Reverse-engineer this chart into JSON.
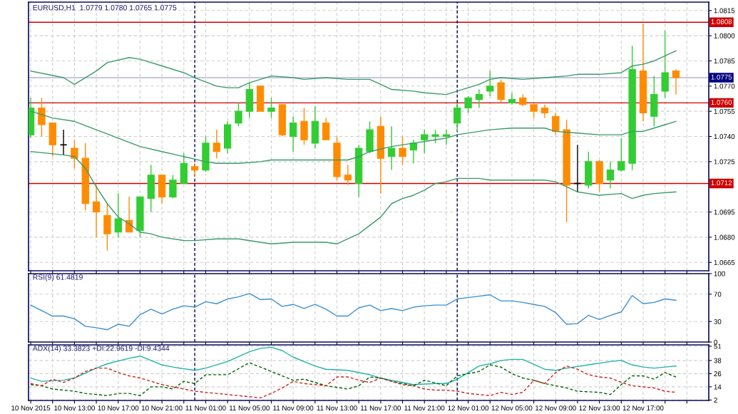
{
  "chart_data": [
    {
      "type": "candlestick",
      "title": "EURUSD,H1  1.0779 1.0780 1.0765 1.0775",
      "x": [
        "2015-11-10T09:00",
        "2015-11-10T10:00",
        "2015-11-10T11:00",
        "2015-11-10T12:00",
        "2015-11-10T13:00",
        "2015-11-10T14:00",
        "2015-11-10T15:00",
        "2015-11-10T16:00",
        "2015-11-10T17:00",
        "2015-11-10T18:00",
        "2015-11-10T19:00",
        "2015-11-10T20:00",
        "2015-11-10T21:00",
        "2015-11-10T22:00",
        "2015-11-10T23:00",
        "2015-11-11T00:00",
        "2015-11-11T01:00",
        "2015-11-11T02:00",
        "2015-11-11T03:00",
        "2015-11-11T04:00",
        "2015-11-11T05:00",
        "2015-11-11T06:00",
        "2015-11-11T07:00",
        "2015-11-11T08:00",
        "2015-11-11T09:00",
        "2015-11-11T10:00",
        "2015-11-11T11:00",
        "2015-11-11T12:00",
        "2015-11-11T13:00",
        "2015-11-11T14:00",
        "2015-11-11T15:00",
        "2015-11-11T16:00",
        "2015-11-11T17:00",
        "2015-11-11T18:00",
        "2015-11-11T19:00",
        "2015-11-11T20:00",
        "2015-11-11T21:00",
        "2015-11-11T22:00",
        "2015-11-11T23:00",
        "2015-11-12T00:00",
        "2015-11-12T01:00",
        "2015-11-12T02:00",
        "2015-11-12T03:00",
        "2015-11-12T04:00",
        "2015-11-12T05:00",
        "2015-11-12T06:00",
        "2015-11-12T07:00",
        "2015-11-12T08:00",
        "2015-11-12T09:00",
        "2015-11-12T10:00",
        "2015-11-12T11:00",
        "2015-11-12T12:00",
        "2015-11-12T13:00",
        "2015-11-12T14:00",
        "2015-11-12T15:00",
        "2015-11-12T16:00",
        "2015-11-12T17:00",
        "2015-11-12T18:00",
        "2015-11-12T19:00",
        "2015-11-12T20:00"
      ],
      "ohlc": [
        [
          1.0741,
          1.0763,
          1.0739,
          1.0757
        ],
        [
          1.0757,
          1.0763,
          1.074,
          1.0747
        ],
        [
          1.0748,
          1.0748,
          1.0728,
          1.0735
        ],
        [
          1.0735,
          1.0744,
          1.0729,
          1.0735
        ],
        [
          1.0733,
          1.0738,
          1.0721,
          1.0727
        ],
        [
          1.0727,
          1.0736,
          1.0696,
          1.07
        ],
        [
          1.0701,
          1.0711,
          1.068,
          1.0695
        ],
        [
          1.0693,
          1.07,
          1.0672,
          1.0682
        ],
        [
          1.0683,
          1.0706,
          1.068,
          1.0691
        ],
        [
          1.069,
          1.0704,
          1.0683,
          1.0683
        ],
        [
          1.0684,
          1.0704,
          1.068,
          1.0704
        ],
        [
          1.0703,
          1.0723,
          1.0695,
          1.0717
        ],
        [
          1.0717,
          1.0717,
          1.07,
          1.0704
        ],
        [
          1.0704,
          1.0717,
          1.0703,
          1.0714
        ],
        [
          1.0712,
          1.073,
          1.0712,
          1.0724
        ],
        [
          1.0722,
          1.0724,
          1.0716,
          1.072
        ],
        [
          1.072,
          1.074,
          1.0719,
          1.0736
        ],
        [
          1.0736,
          1.0744,
          1.0727,
          1.0731
        ],
        [
          1.0733,
          1.0749,
          1.073,
          1.0747
        ],
        [
          1.0748,
          1.076,
          1.0746,
          1.0755
        ],
        [
          1.0755,
          1.0772,
          1.0751,
          1.0768
        ],
        [
          1.077,
          1.077,
          1.0755,
          1.0755
        ],
        [
          1.0755,
          1.0763,
          1.0751,
          1.0757
        ],
        [
          1.0759,
          1.0759,
          1.074,
          1.0741
        ],
        [
          1.074,
          1.0752,
          1.0731,
          1.0748
        ],
        [
          1.0749,
          1.0757,
          1.0735,
          1.0738
        ],
        [
          1.0736,
          1.0758,
          1.0733,
          1.0749
        ],
        [
          1.0748,
          1.0751,
          1.0738,
          1.0738
        ],
        [
          1.0736,
          1.074,
          1.0714,
          1.0716
        ],
        [
          1.0717,
          1.0723,
          1.0711,
          1.0714
        ],
        [
          1.0712,
          1.0735,
          1.0704,
          1.0733
        ],
        [
          1.0731,
          1.0749,
          1.073,
          1.0744
        ],
        [
          1.0746,
          1.0752,
          1.0706,
          1.0727
        ],
        [
          1.0728,
          1.0746,
          1.072,
          1.0733
        ],
        [
          1.0733,
          1.074,
          1.0723,
          1.0728
        ],
        [
          1.0732,
          1.0738,
          1.0724,
          1.0736
        ],
        [
          1.0738,
          1.0744,
          1.073,
          1.0741
        ],
        [
          1.074,
          1.0744,
          1.0736,
          1.0741
        ],
        [
          1.074,
          1.0744,
          1.0735,
          1.0741
        ],
        [
          1.0748,
          1.076,
          1.0743,
          1.0757
        ],
        [
          1.0757,
          1.0764,
          1.0754,
          1.0763
        ],
        [
          1.0762,
          1.0768,
          1.0757,
          1.0765
        ],
        [
          1.0767,
          1.0779,
          1.0764,
          1.077
        ],
        [
          1.0772,
          1.0774,
          1.076,
          1.0762
        ],
        [
          1.076,
          1.0766,
          1.0759,
          1.0762
        ],
        [
          1.0763,
          1.0765,
          1.0758,
          1.0759
        ],
        [
          1.0759,
          1.0759,
          1.0751,
          1.0755
        ],
        [
          1.0757,
          1.0759,
          1.0751,
          1.0754
        ],
        [
          1.0752,
          1.0754,
          1.0741,
          1.0743
        ],
        [
          1.0744,
          1.075,
          1.0689,
          1.0711
        ],
        [
          1.0712,
          1.0735,
          1.0707,
          1.0712
        ],
        [
          1.0711,
          1.0731,
          1.0709,
          1.0725
        ],
        [
          1.0725,
          1.0726,
          1.0707,
          1.0712
        ],
        [
          1.0714,
          1.0725,
          1.0709,
          1.072
        ],
        [
          1.072,
          1.0739,
          1.0719,
          1.0725
        ],
        [
          1.0724,
          1.0794,
          1.072,
          1.078
        ],
        [
          1.0779,
          1.0807,
          1.0749,
          1.0754
        ],
        [
          1.0752,
          1.0776,
          1.0746,
          1.0765
        ],
        [
          1.0767,
          1.0803,
          1.0763,
          1.0778
        ],
        [
          1.0779,
          1.078,
          1.0765,
          1.0775
        ]
      ],
      "colors": [
        "#32cd32",
        "#ff8c00",
        "#ff8c00",
        "#000000",
        "#ff8c00",
        "#ff8c00",
        "#ff8c00",
        "#ff8c00",
        "#32cd32",
        "#ff8c00",
        "#32cd32",
        "#32cd32",
        "#ff8c00",
        "#32cd32",
        "#32cd32",
        "#ff8c00",
        "#32cd32",
        "#ff8c00",
        "#32cd32",
        "#32cd32",
        "#32cd32",
        "#ff8c00",
        "#32cd32",
        "#ff8c00",
        "#32cd32",
        "#ff8c00",
        "#32cd32",
        "#ff8c00",
        "#ff8c00",
        "#ff8c00",
        "#32cd32",
        "#32cd32",
        "#ff8c00",
        "#32cd32",
        "#ff8c00",
        "#32cd32",
        "#32cd32",
        "#32cd32",
        "#32cd32",
        "#32cd32",
        "#32cd32",
        "#32cd32",
        "#32cd32",
        "#ff8c00",
        "#32cd32",
        "#ff8c00",
        "#ff8c00",
        "#ff8c00",
        "#ff8c00",
        "#ff8c00",
        "#000000",
        "#32cd32",
        "#ff8c00",
        "#32cd32",
        "#32cd32",
        "#32cd32",
        "#ff8c00",
        "#32cd32",
        "#32cd32",
        "#ff8c00"
      ],
      "series": [
        {
          "type": "line",
          "color": "#3a9a6a",
          "x": [
            "2015-11-10T09:00",
            "2015-11-10T12:00",
            "2015-11-10T13:00",
            "2015-11-10T15:00",
            "2015-11-10T16:00",
            "2015-11-10T18:00",
            "2015-11-10T19:00",
            "2015-11-10T21:00",
            "2015-11-10T23:00",
            "2015-11-11T00:00",
            "2015-11-11T02:00",
            "2015-11-11T03:00",
            "2015-11-11T04:00",
            "2015-11-11T05:00",
            "2015-11-11T06:00",
            "2015-11-11T07:00",
            "2015-11-11T09:00",
            "2015-11-11T10:00",
            "2015-11-11T12:00",
            "2015-11-11T14:00",
            "2015-11-11T16:00",
            "2015-11-11T17:00",
            "2015-11-11T18:00",
            "2015-11-11T20:00",
            "2015-11-11T21:00",
            "2015-11-11T23:00",
            "2015-11-12T00:00",
            "2015-11-12T01:00",
            "2015-11-12T02:00",
            "2015-11-12T03:00",
            "2015-11-12T04:00",
            "2015-11-12T06:00",
            "2015-11-12T08:00",
            "2015-11-12T10:00",
            "2015-11-12T11:00",
            "2015-11-12T13:00",
            "2015-11-12T15:00",
            "2015-11-12T16:00",
            "2015-11-12T17:00",
            "2015-11-12T18:00",
            "2015-11-12T19:00",
            "2015-11-12T20:00"
          ],
          "values": [
            1.0779,
            1.0775,
            1.0771,
            1.0779,
            1.0784,
            1.0787,
            1.0786,
            1.0782,
            1.0778,
            1.0775,
            1.077,
            1.0769,
            1.0769,
            1.0772,
            1.0774,
            1.0776,
            1.0775,
            1.0774,
            1.0775,
            1.0774,
            1.0774,
            1.0771,
            1.0768,
            1.0767,
            1.0766,
            1.0765,
            1.0767,
            1.0769,
            1.0771,
            1.0774,
            1.0775,
            1.0774,
            1.0775,
            1.0776,
            1.0777,
            1.0777,
            1.0778,
            1.0782,
            1.0783,
            1.0785,
            1.0788,
            1.0791
          ]
        },
        {
          "type": "line",
          "color": "#3a9a6a",
          "x": [
            "2015-11-10T09:00",
            "2015-11-10T11:00",
            "2015-11-10T13:00",
            "2015-11-10T15:00",
            "2015-11-10T17:00",
            "2015-11-10T19:00",
            "2015-11-10T21:00",
            "2015-11-10T23:00",
            "2015-11-11T01:00",
            "2015-11-11T02:00",
            "2015-11-11T04:00",
            "2015-11-11T06:00",
            "2015-11-11T07:00",
            "2015-11-11T09:00",
            "2015-11-11T12:00",
            "2015-11-11T13:00",
            "2015-11-11T14:00",
            "2015-11-11T15:00",
            "2015-11-11T16:00",
            "2015-11-11T18:00",
            "2015-11-11T20:00",
            "2015-11-11T22:00",
            "2015-11-11T23:00",
            "2015-11-12T00:00",
            "2015-11-12T02:00",
            "2015-11-12T03:00",
            "2015-11-12T05:00",
            "2015-11-12T08:00",
            "2015-11-12T09:00",
            "2015-11-12T11:00",
            "2015-11-12T13:00",
            "2015-11-12T15:00",
            "2015-11-12T16:00",
            "2015-11-12T17:00",
            "2015-11-12T18:00",
            "2015-11-12T19:00",
            "2015-11-12T20:00"
          ],
          "values": [
            1.0755,
            1.0751,
            1.0749,
            1.0744,
            1.0739,
            1.0734,
            1.0731,
            1.0728,
            1.0725,
            1.0724,
            1.0724,
            1.0725,
            1.0726,
            1.0726,
            1.0726,
            1.0726,
            1.0726,
            1.0728,
            1.0731,
            1.0734,
            1.0736,
            1.0738,
            1.0739,
            1.0741,
            1.0743,
            1.0744,
            1.0745,
            1.0745,
            1.0743,
            1.0742,
            1.0741,
            1.0741,
            1.0743,
            1.0743,
            1.0745,
            1.0747,
            1.0749
          ]
        },
        {
          "type": "line",
          "color": "#3a9a6a",
          "x": [
            "2015-11-10T09:00",
            "2015-11-10T12:00",
            "2015-11-10T13:00",
            "2015-11-10T14:00",
            "2015-11-10T15:00",
            "2015-11-10T16:00",
            "2015-11-10T17:00",
            "2015-11-10T18:00",
            "2015-11-10T19:00",
            "2015-11-10T20:00",
            "2015-11-10T21:00",
            "2015-11-10T23:00",
            "2015-11-11T00:00",
            "2015-11-11T02:00",
            "2015-11-11T04:00",
            "2015-11-11T06:00",
            "2015-11-11T07:00",
            "2015-11-11T09:00",
            "2015-11-11T11:00",
            "2015-11-11T12:00",
            "2015-11-11T13:00",
            "2015-11-11T14:00",
            "2015-11-11T15:00",
            "2015-11-11T16:00",
            "2015-11-11T17:00",
            "2015-11-11T18:00",
            "2015-11-11T19:00",
            "2015-11-11T20:00",
            "2015-11-11T21:00",
            "2015-11-11T22:00",
            "2015-11-11T23:00",
            "2015-11-12T00:00",
            "2015-11-12T02:00",
            "2015-11-12T03:00",
            "2015-11-12T04:00",
            "2015-11-12T06:00",
            "2015-11-12T08:00",
            "2015-11-12T09:00",
            "2015-11-12T10:00",
            "2015-11-12T11:00",
            "2015-11-12T12:00",
            "2015-11-12T13:00",
            "2015-11-12T15:00",
            "2015-11-12T16:00",
            "2015-11-12T17:00",
            "2015-11-12T18:00",
            "2015-11-12T20:00"
          ],
          "values": [
            1.0731,
            1.0729,
            1.0728,
            1.0721,
            1.071,
            1.07,
            1.0692,
            1.0688,
            1.0683,
            1.0682,
            1.068,
            1.0678,
            1.0678,
            1.0679,
            1.0679,
            1.0677,
            1.0676,
            1.0677,
            1.0677,
            1.0677,
            1.0676,
            1.0679,
            1.0682,
            1.0687,
            1.0692,
            1.07,
            1.0703,
            1.0705,
            1.0708,
            1.0712,
            1.0713,
            1.0715,
            1.0715,
            1.0714,
            1.0714,
            1.0714,
            1.0714,
            1.0713,
            1.071,
            1.0707,
            1.0706,
            1.0705,
            1.0706,
            1.0703,
            1.0705,
            1.0706,
            1.0707
          ]
        }
      ],
      "xlim": [
        "2015-11-10T08:48",
        "2015-11-12T23:00"
      ],
      "xticks": [
        {
          "value": "2015-11-10T09:00",
          "label": null
        },
        {
          "value": "2015-11-10T11:00",
          "label": null
        },
        {
          "value": "2015-11-10T13:00",
          "label": null
        },
        {
          "value": "2015-11-10T15:00",
          "label": null
        },
        {
          "value": "2015-11-10T17:00",
          "label": null
        },
        {
          "value": "2015-11-10T19:00",
          "label": null
        },
        {
          "value": "2015-11-10T21:00",
          "label": null
        },
        {
          "value": "2015-11-10T23:00",
          "label": null
        },
        {
          "value": "2015-11-11T01:00",
          "label": null
        },
        {
          "value": "2015-11-11T03:00",
          "label": null
        },
        {
          "value": "2015-11-11T05:00",
          "label": null
        },
        {
          "value": "2015-11-11T07:00",
          "label": null
        },
        {
          "value": "2015-11-11T09:00",
          "label": null
        },
        {
          "value": "2015-11-11T11:00",
          "label": null
        },
        {
          "value": "2015-11-11T13:00",
          "label": null
        },
        {
          "value": "2015-11-11T15:00",
          "label": null
        },
        {
          "value": "2015-11-11T17:00",
          "label": null
        },
        {
          "value": "2015-11-11T19:00",
          "label": null
        },
        {
          "value": "2015-11-11T21:00",
          "label": null
        },
        {
          "value": "2015-11-11T23:00",
          "label": null
        },
        {
          "value": "2015-11-12T01:00",
          "label": null
        },
        {
          "value": "2015-11-12T03:00",
          "label": null
        },
        {
          "value": "2015-11-12T05:00",
          "label": null
        },
        {
          "value": "2015-11-12T07:00",
          "label": null
        },
        {
          "value": "2015-11-12T09:00",
          "label": null
        },
        {
          "value": "2015-11-12T11:00",
          "label": null
        },
        {
          "value": "2015-11-12T13:00",
          "label": null
        },
        {
          "value": "2015-11-12T15:00",
          "label": null
        },
        {
          "value": "2015-11-12T17:00",
          "label": null
        },
        {
          "value": "2015-11-12T19:00",
          "label": null
        },
        {
          "value": "2015-11-12T21:00",
          "label": null
        }
      ],
      "ylim": [
        1.066,
        1.082
      ],
      "yticks": [
        1.0665,
        {
          "value": 1.068,
          "label": "1.0680"
        },
        1.0695,
        1.0725,
        {
          "value": 1.074,
          "label": "1.0740"
        },
        1.0755,
        {
          "value": 1.077,
          "label": "1.0770"
        },
        1.0785,
        {
          "value": 1.08,
          "label": "1.0800"
        },
        1.0815
      ],
      "ref_lines": [
        {
          "axis": "y",
          "value": 1.0808,
          "label": "1.0808",
          "color": "#cc0000"
        },
        {
          "axis": "y",
          "value": 1.076,
          "label": "1.0760",
          "color": "#cc0000"
        },
        {
          "axis": "y",
          "value": 1.0712,
          "label": "1.0712",
          "color": "#cc0000"
        },
        {
          "axis": "y",
          "value": 1.0775,
          "label": "1.0775",
          "color": "#000080"
        },
        {
          "axis": "x",
          "value": "2015-11-11T00:00",
          "color": "#000050",
          "line_style": "dashed"
        },
        {
          "axis": "x",
          "value": "2015-11-12T00:00",
          "color": "#000050",
          "line_style": "dashed"
        }
      ],
      "grid": true,
      "tick_labels": "y"
    },
    {
      "type": "line",
      "title": "RSI(9) 61.4819",
      "x": [
        "2015-11-10T09:00",
        "2015-11-10T10:00",
        "2015-11-10T11:00",
        "2015-11-10T12:00",
        "2015-11-10T13:00",
        "2015-11-10T14:00",
        "2015-11-10T15:00",
        "2015-11-10T16:00",
        "2015-11-10T17:00",
        "2015-11-10T18:00",
        "2015-11-10T19:00",
        "2015-11-10T20:00",
        "2015-11-10T21:00",
        "2015-11-10T22:00",
        "2015-11-10T23:00",
        "2015-11-11T00:00",
        "2015-11-11T01:00",
        "2015-11-11T02:00",
        "2015-11-11T03:00",
        "2015-11-11T04:00",
        "2015-11-11T05:00",
        "2015-11-11T06:00",
        "2015-11-11T07:00",
        "2015-11-11T08:00",
        "2015-11-11T09:00",
        "2015-11-11T10:00",
        "2015-11-11T11:00",
        "2015-11-11T12:00",
        "2015-11-11T13:00",
        "2015-11-11T14:00",
        "2015-11-11T15:00",
        "2015-11-11T16:00",
        "2015-11-11T17:00",
        "2015-11-11T18:00",
        "2015-11-11T19:00",
        "2015-11-11T20:00",
        "2015-11-11T21:00",
        "2015-11-11T22:00",
        "2015-11-11T23:00",
        "2015-11-12T00:00",
        "2015-11-12T01:00",
        "2015-11-12T02:00",
        "2015-11-12T03:00",
        "2015-11-12T04:00",
        "2015-11-12T05:00",
        "2015-11-12T06:00",
        "2015-11-12T07:00",
        "2015-11-12T08:00",
        "2015-11-12T09:00",
        "2015-11-12T10:00",
        "2015-11-12T11:00",
        "2015-11-12T12:00",
        "2015-11-12T13:00",
        "2015-11-12T14:00",
        "2015-11-12T15:00",
        "2015-11-12T16:00",
        "2015-11-12T17:00",
        "2015-11-12T18:00",
        "2015-11-12T19:00",
        "2015-11-12T20:00"
      ],
      "series": [
        {
          "color": "#3b8fd4",
          "values": [
            54,
            46,
            38,
            38,
            34,
            23,
            21,
            18,
            26,
            23,
            40,
            48,
            41,
            48,
            53,
            51,
            59,
            56,
            63,
            66,
            71,
            62,
            63,
            52,
            55,
            49,
            55,
            48,
            38,
            38,
            50,
            54,
            46,
            49,
            46,
            51,
            53,
            54,
            54,
            63,
            65,
            67,
            69,
            60,
            60,
            58,
            55,
            52,
            43,
            26,
            27,
            39,
            33,
            39,
            44,
            68,
            56,
            58,
            63,
            61
          ]
        }
      ],
      "xlim": [
        "2015-11-10T08:48",
        "2015-11-12T23:00"
      ],
      "xticks": [
        {
          "value": "2015-11-10T09:00",
          "label": null
        },
        {
          "value": "2015-11-10T11:00",
          "label": null
        },
        {
          "value": "2015-11-10T13:00",
          "label": null
        },
        {
          "value": "2015-11-10T15:00",
          "label": null
        },
        {
          "value": "2015-11-10T17:00",
          "label": null
        },
        {
          "value": "2015-11-10T19:00",
          "label": null
        },
        {
          "value": "2015-11-10T21:00",
          "label": null
        },
        {
          "value": "2015-11-10T23:00",
          "label": null
        },
        {
          "value": "2015-11-11T01:00",
          "label": null
        },
        {
          "value": "2015-11-11T03:00",
          "label": null
        },
        {
          "value": "2015-11-11T05:00",
          "label": null
        },
        {
          "value": "2015-11-11T07:00",
          "label": null
        },
        {
          "value": "2015-11-11T09:00",
          "label": null
        },
        {
          "value": "2015-11-11T11:00",
          "label": null
        },
        {
          "value": "2015-11-11T13:00",
          "label": null
        },
        {
          "value": "2015-11-11T15:00",
          "label": null
        },
        {
          "value": "2015-11-11T17:00",
          "label": null
        },
        {
          "value": "2015-11-11T19:00",
          "label": null
        },
        {
          "value": "2015-11-11T21:00",
          "label": null
        },
        {
          "value": "2015-11-11T23:00",
          "label": null
        },
        {
          "value": "2015-11-12T01:00",
          "label": null
        },
        {
          "value": "2015-11-12T03:00",
          "label": null
        },
        {
          "value": "2015-11-12T05:00",
          "label": null
        },
        {
          "value": "2015-11-12T07:00",
          "label": null
        },
        {
          "value": "2015-11-12T09:00",
          "label": null
        },
        {
          "value": "2015-11-12T11:00",
          "label": null
        },
        {
          "value": "2015-11-12T13:00",
          "label": null
        },
        {
          "value": "2015-11-12T15:00",
          "label": null
        },
        {
          "value": "2015-11-12T17:00",
          "label": null
        },
        {
          "value": "2015-11-12T19:00",
          "label": null
        },
        {
          "value": "2015-11-12T21:00",
          "label": null
        }
      ],
      "ylim": [
        0,
        100
      ],
      "yticks": [
        0,
        30,
        70,
        100
      ],
      "ref_lines": [
        {
          "axis": "x",
          "value": "2015-11-11T00:00",
          "color": "#000050",
          "line_style": "dashed"
        },
        {
          "axis": "x",
          "value": "2015-11-12T00:00",
          "color": "#000050",
          "line_style": "dashed"
        }
      ],
      "grid": true,
      "tick_labels": "y"
    },
    {
      "type": "line",
      "title": "ADX(14) 33.3823 +DI:22.9619 -DI:9.4344",
      "x": [
        "2015-11-10T09:00",
        "2015-11-10T10:00",
        "2015-11-10T11:00",
        "2015-11-10T12:00",
        "2015-11-10T13:00",
        "2015-11-10T14:00",
        "2015-11-10T15:00",
        "2015-11-10T16:00",
        "2015-11-10T17:00",
        "2015-11-10T18:00",
        "2015-11-10T19:00",
        "2015-11-10T20:00",
        "2015-11-10T21:00",
        "2015-11-10T22:00",
        "2015-11-10T23:00",
        "2015-11-11T00:00",
        "2015-11-11T01:00",
        "2015-11-11T02:00",
        "2015-11-11T03:00",
        "2015-11-11T04:00",
        "2015-11-11T05:00",
        "2015-11-11T06:00",
        "2015-11-11T07:00",
        "2015-11-11T08:00",
        "2015-11-11T09:00",
        "2015-11-11T10:00",
        "2015-11-11T11:00",
        "2015-11-11T12:00",
        "2015-11-11T13:00",
        "2015-11-11T14:00",
        "2015-11-11T15:00",
        "2015-11-11T16:00",
        "2015-11-11T17:00",
        "2015-11-11T18:00",
        "2015-11-11T19:00",
        "2015-11-11T20:00",
        "2015-11-11T21:00",
        "2015-11-11T22:00",
        "2015-11-11T23:00",
        "2015-11-12T00:00",
        "2015-11-12T01:00",
        "2015-11-12T02:00",
        "2015-11-12T03:00",
        "2015-11-12T04:00",
        "2015-11-12T05:00",
        "2015-11-12T06:00",
        "2015-11-12T07:00",
        "2015-11-12T08:00",
        "2015-11-12T09:00",
        "2015-11-12T10:00",
        "2015-11-12T11:00",
        "2015-11-12T12:00",
        "2015-11-12T13:00",
        "2015-11-12T14:00",
        "2015-11-12T15:00",
        "2015-11-12T16:00",
        "2015-11-12T17:00",
        "2015-11-12T18:00",
        "2015-11-12T19:00",
        "2015-11-12T20:00"
      ],
      "series": [
        {
          "color": "#20b2aa",
          "line_style": "solid",
          "x": [
            "2015-11-10T09:00",
            "2015-11-10T10:00",
            "2015-11-10T12:00",
            "2015-11-10T13:00",
            "2015-11-10T15:00",
            "2015-11-10T16:00",
            "2015-11-10T18:00",
            "2015-11-10T19:00",
            "2015-11-10T21:00",
            "2015-11-10T22:00",
            "2015-11-11T00:00",
            "2015-11-11T01:00",
            "2015-11-11T03:00",
            "2015-11-11T05:00",
            "2015-11-11T06:00",
            "2015-11-11T07:00",
            "2015-11-11T08:00",
            "2015-11-11T09:00",
            "2015-11-11T11:00",
            "2015-11-11T12:00",
            "2015-11-11T14:00",
            "2015-11-11T16:00",
            "2015-11-11T17:00",
            "2015-11-11T18:00",
            "2015-11-11T19:00",
            "2015-11-11T20:00",
            "2015-11-11T22:00",
            "2015-11-11T23:00",
            "2015-11-12T00:00",
            "2015-11-12T01:00",
            "2015-11-12T02:00",
            "2015-11-12T03:00",
            "2015-11-12T04:00",
            "2015-11-12T05:00",
            "2015-11-12T06:00",
            "2015-11-12T08:00",
            "2015-11-12T09:00",
            "2015-11-12T10:00",
            "2015-11-12T12:00",
            "2015-11-12T14:00",
            "2015-11-12T15:00",
            "2015-11-12T16:00",
            "2015-11-12T17:00",
            "2015-11-12T18:00",
            "2015-11-12T19:00",
            "2015-11-12T20:00"
          ],
          "values": [
            22,
            19,
            20,
            22,
            31,
            35,
            40,
            42,
            34,
            32,
            29,
            31,
            37,
            46,
            49,
            50,
            47,
            41,
            33,
            30,
            29,
            25,
            22,
            20,
            18,
            16,
            17,
            17,
            21,
            27,
            33,
            35,
            38,
            39,
            39,
            30,
            29,
            31,
            34,
            37,
            38,
            34,
            32,
            31,
            32,
            33
          ]
        },
        {
          "color": "#006400",
          "line_style": "dashed",
          "x": [
            "2015-11-10T09:00",
            "2015-11-10T10:00",
            "2015-11-10T11:00",
            "2015-11-10T13:00",
            "2015-11-10T14:00",
            "2015-11-10T16:00",
            "2015-11-10T17:00",
            "2015-11-10T18:00",
            "2015-11-10T19:00",
            "2015-11-10T20:00",
            "2015-11-10T21:00",
            "2015-11-10T22:00",
            "2015-11-10T23:00",
            "2015-11-11T00:00",
            "2015-11-11T01:00",
            "2015-11-11T02:00",
            "2015-11-11T03:00",
            "2015-11-11T05:00",
            "2015-11-11T06:00",
            "2015-11-11T07:00",
            "2015-11-11T09:00",
            "2015-11-11T10:00",
            "2015-11-11T12:00",
            "2015-11-11T14:00",
            "2015-11-11T15:00",
            "2015-11-11T16:00",
            "2015-11-11T17:00",
            "2015-11-11T18:00",
            "2015-11-11T19:00",
            "2015-11-11T20:00",
            "2015-11-11T21:00",
            "2015-11-11T23:00",
            "2015-11-12T00:00",
            "2015-11-12T01:00",
            "2015-11-12T02:00",
            "2015-11-12T03:00",
            "2015-11-12T04:00",
            "2015-11-12T05:00",
            "2015-11-12T06:00",
            "2015-11-12T07:00",
            "2015-11-12T08:00",
            "2015-11-12T09:00",
            "2015-11-12T10:00",
            "2015-11-12T11:00",
            "2015-11-12T13:00",
            "2015-11-12T14:00",
            "2015-11-12T15:00",
            "2015-11-12T16:00",
            "2015-11-12T17:00",
            "2015-11-12T18:00",
            "2015-11-12T19:00",
            "2015-11-12T20:00"
          ],
          "values": [
            16,
            15,
            12,
            10,
            8,
            6,
            8,
            8,
            6,
            14,
            14,
            12,
            19,
            17,
            25,
            25,
            25,
            36,
            32,
            28,
            20,
            21,
            15,
            12,
            15,
            23,
            22,
            19,
            17,
            15,
            20,
            15,
            24,
            26,
            28,
            34,
            32,
            26,
            22,
            20,
            17,
            15,
            13,
            10,
            9,
            7,
            16,
            24,
            24,
            21,
            27,
            23
          ]
        },
        {
          "color": "#c8281e",
          "line_style": "dashed",
          "values": [
            17,
            15,
            21,
            18,
            22,
            28,
            31,
            31,
            27,
            24,
            22,
            19,
            16,
            14,
            12,
            10,
            9,
            8,
            7,
            6,
            5,
            4,
            8,
            13,
            19,
            17,
            16,
            15,
            23,
            23,
            20,
            18,
            22,
            19,
            16,
            15,
            12,
            11,
            11,
            10,
            8,
            7,
            6,
            9,
            7,
            9,
            20,
            17,
            27,
            33,
            30,
            25,
            23,
            22,
            18,
            15,
            14,
            13,
            10,
            9
          ]
        }
      ],
      "xlim": [
        "2015-11-10T08:48",
        "2015-11-12T23:00"
      ],
      "xticks": [
        {
          "value": "2015-11-10T09:00",
          "label": "10 Nov 2015"
        },
        {
          "value": "2015-11-10T11:00",
          "label": null
        },
        {
          "value": "2015-11-10T13:00",
          "label": "10 Nov 13:00"
        },
        {
          "value": "2015-11-10T15:00",
          "label": null
        },
        {
          "value": "2015-11-10T17:00",
          "label": "10 Nov 17:00"
        },
        {
          "value": "2015-11-10T19:00",
          "label": null
        },
        {
          "value": "2015-11-10T21:00",
          "label": "10 Nov 21:00"
        },
        {
          "value": "2015-11-10T23:00",
          "label": null
        },
        {
          "value": "2015-11-11T01:00",
          "label": "11 Nov 01:00"
        },
        {
          "value": "2015-11-11T03:00",
          "label": null
        },
        {
          "value": "2015-11-11T05:00",
          "label": "11 Nov 05:00"
        },
        {
          "value": "2015-11-11T07:00",
          "label": null
        },
        {
          "value": "2015-11-11T09:00",
          "label": "11 Nov 09:00"
        },
        {
          "value": "2015-11-11T11:00",
          "label": null
        },
        {
          "value": "2015-11-11T13:00",
          "label": "11 Nov 13:00"
        },
        {
          "value": "2015-11-11T15:00",
          "label": null
        },
        {
          "value": "2015-11-11T17:00",
          "label": "11 Nov 17:00"
        },
        {
          "value": "2015-11-11T19:00",
          "label": null
        },
        {
          "value": "2015-11-11T21:00",
          "label": "11 Nov 21:00"
        },
        {
          "value": "2015-11-11T23:00",
          "label": null
        },
        {
          "value": "2015-11-12T01:00",
          "label": "12 Nov 01:00"
        },
        {
          "value": "2015-11-12T03:00",
          "label": null
        },
        {
          "value": "2015-11-12T05:00",
          "label": "12 Nov 05:00"
        },
        {
          "value": "2015-11-12T07:00",
          "label": null
        },
        {
          "value": "2015-11-12T09:00",
          "label": "12 Nov 09:00"
        },
        {
          "value": "2015-11-12T11:00",
          "label": null
        },
        {
          "value": "2015-11-12T13:00",
          "label": "12 Nov 13:00"
        },
        {
          "value": "2015-11-12T15:00",
          "label": null
        },
        {
          "value": "2015-11-12T17:00",
          "label": "12 Nov 17:00"
        },
        {
          "value": "2015-11-12T19:00",
          "label": null
        },
        {
          "value": "2015-11-12T21:00",
          "label": null
        }
      ],
      "ylim": [
        1.6,
        52.2
      ],
      "yticks": [
        2,
        14,
        26,
        38,
        51
      ],
      "ref_lines": [
        {
          "axis": "x",
          "value": "2015-11-11T00:00",
          "color": "#000050",
          "line_style": "dashed"
        },
        {
          "axis": "x",
          "value": "2015-11-12T00:00",
          "color": "#000050",
          "line_style": "dashed"
        }
      ],
      "grid": true
    }
  ]
}
